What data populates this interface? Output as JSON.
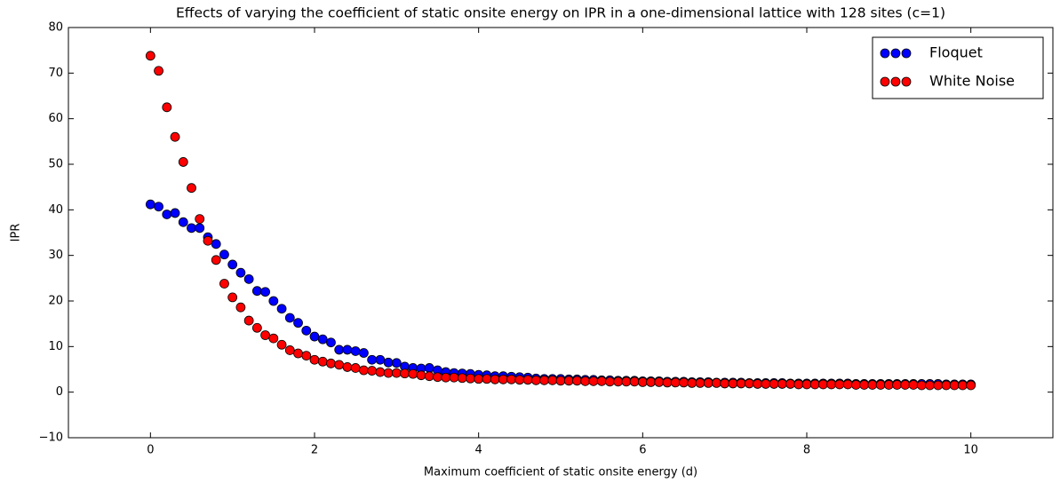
{
  "chart_data": {
    "type": "scatter",
    "title": "Effects of varying the coefficient of static onsite energy on IPR in a one-dimensional lattice with 128 sites (c=1)",
    "x_label": "Maximum coefficient of static onsite energy (d)",
    "y_label": "IPR",
    "x": [
      0,
      0.1,
      0.2,
      0.3,
      0.4,
      0.5,
      0.6,
      0.7,
      0.8,
      0.9,
      1,
      1.1,
      1.2,
      1.3,
      1.4,
      1.5,
      1.6,
      1.7,
      1.8,
      1.9,
      2,
      2.1,
      2.2,
      2.3,
      2.4,
      2.5,
      2.6,
      2.7,
      2.8,
      2.9,
      3,
      3.1,
      3.2,
      3.3,
      3.4,
      3.5,
      3.6,
      3.7,
      3.8,
      3.9,
      4,
      4.1,
      4.2,
      4.3,
      4.4,
      4.5,
      4.6,
      4.7,
      4.8,
      4.9,
      5,
      5.1,
      5.2,
      5.3,
      5.4,
      5.5,
      5.6,
      5.7,
      5.8,
      5.9,
      6,
      6.1,
      6.2,
      6.3,
      6.4,
      6.5,
      6.6,
      6.7,
      6.8,
      6.9,
      7,
      7.1,
      7.2,
      7.3,
      7.4,
      7.5,
      7.6,
      7.7,
      7.8,
      7.9,
      8,
      8.1,
      8.2,
      8.3,
      8.4,
      8.5,
      8.6,
      8.7,
      8.8,
      8.9,
      9,
      9.1,
      9.2,
      9.3,
      9.4,
      9.5,
      9.6,
      9.7,
      9.8,
      9.9,
      10
    ],
    "series": [
      {
        "name": "Floquet",
        "color": "#0000ff",
        "values": [
          41.2,
          40.7,
          39,
          39.3,
          37.3,
          36,
          36,
          34,
          32.5,
          30.2,
          28,
          26.2,
          24.8,
          22.2,
          22,
          20,
          18.3,
          16.3,
          15.2,
          13.5,
          12.2,
          11.6,
          10.9,
          9.3,
          9.3,
          9,
          8.6,
          7.1,
          7.1,
          6.5,
          6.4,
          5.6,
          5.3,
          5.2,
          5.3,
          4.8,
          4.4,
          4.2,
          4.1,
          4.0,
          3.8,
          3.7,
          3.5,
          3.5,
          3.4,
          3.3,
          3.2,
          3.0,
          2.9,
          2.9,
          2.9,
          2.8,
          2.8,
          2.7,
          2.7,
          2.6,
          2.6,
          2.5,
          2.5,
          2.5,
          2.4,
          2.4,
          2.4,
          2.3,
          2.3,
          2.3,
          2.2,
          2.2,
          2.2,
          2.1,
          2.1,
          2.1,
          2.1,
          2.0,
          2.0,
          2.0,
          2.0,
          2.0,
          1.9,
          1.9,
          1.9,
          1.9,
          1.9,
          1.9,
          1.9,
          1.9,
          1.8,
          1.8,
          1.8,
          1.8,
          1.8,
          1.8,
          1.8,
          1.8,
          1.8,
          1.8,
          1.8,
          1.7,
          1.7,
          1.7,
          1.7
        ]
      },
      {
        "name": "White Noise",
        "color": "#ff0000",
        "values": [
          73.8,
          70.5,
          62.5,
          56,
          50.5,
          44.8,
          38,
          33.2,
          29,
          23.8,
          20.8,
          18.6,
          15.7,
          14.1,
          12.5,
          11.8,
          10.4,
          9.2,
          8.5,
          8.0,
          7.1,
          6.7,
          6.3,
          6.0,
          5.5,
          5.3,
          4.8,
          4.7,
          4.4,
          4.2,
          4.2,
          4.1,
          4.0,
          3.7,
          3.5,
          3.3,
          3.2,
          3.2,
          3.1,
          3.0,
          2.9,
          2.9,
          2.8,
          2.8,
          2.8,
          2.7,
          2.7,
          2.6,
          2.6,
          2.6,
          2.5,
          2.5,
          2.5,
          2.4,
          2.4,
          2.4,
          2.3,
          2.3,
          2.3,
          2.3,
          2.2,
          2.2,
          2.2,
          2.1,
          2.1,
          2.1,
          2.0,
          2.0,
          2.0,
          2.0,
          1.9,
          1.9,
          1.9,
          1.9,
          1.8,
          1.8,
          1.8,
          1.8,
          1.8,
          1.7,
          1.7,
          1.7,
          1.7,
          1.7,
          1.7,
          1.7,
          1.6,
          1.6,
          1.6,
          1.6,
          1.6,
          1.6,
          1.6,
          1.6,
          1.5,
          1.5,
          1.5,
          1.5,
          1.5,
          1.5,
          1.5
        ]
      }
    ],
    "xlim": [
      -1,
      11
    ],
    "xticks": [
      0,
      2,
      4,
      6,
      8,
      10
    ],
    "ylim": [
      -10,
      80
    ],
    "yticks": [
      {
        "value": -10,
        "label": "−10"
      },
      0,
      10,
      20,
      30,
      40,
      50,
      60,
      70,
      80
    ],
    "grid": false,
    "legend": "upper right"
  }
}
